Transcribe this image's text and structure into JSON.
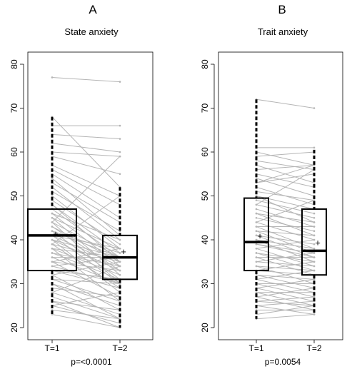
{
  "chart_data": [
    {
      "type": "boxplot-paired",
      "panel_letter": "A",
      "title": "State anxiety",
      "categories": [
        "T=1",
        "T=2"
      ],
      "ylim": [
        20,
        80
      ],
      "yticks": [
        "20",
        "30",
        "40",
        "50",
        "60",
        "70",
        "80"
      ],
      "p_value": "p=<0.0001",
      "mean_marker": "+",
      "boxes": [
        {
          "category": "T=1",
          "min": 23,
          "q1": 33,
          "median": 41,
          "q3": 47,
          "max": 68,
          "mean": 41.3
        },
        {
          "category": "T=2",
          "min": 20,
          "q1": 31,
          "median": 36,
          "q3": 41,
          "max": 52,
          "mean": 37.2
        }
      ],
      "pairs": [
        [
          77,
          76
        ],
        [
          68,
          52
        ],
        [
          66,
          66
        ],
        [
          64,
          63
        ],
        [
          62,
          60
        ],
        [
          60,
          59
        ],
        [
          59,
          55
        ],
        [
          57,
          50
        ],
        [
          56,
          48
        ],
        [
          55,
          45
        ],
        [
          54,
          41
        ],
        [
          53,
          44
        ],
        [
          52,
          40
        ],
        [
          51,
          42
        ],
        [
          50,
          38
        ],
        [
          49,
          39
        ],
        [
          48,
          37
        ],
        [
          48,
          35
        ],
        [
          47,
          36
        ],
        [
          46,
          34
        ],
        [
          46,
          40
        ],
        [
          45,
          32
        ],
        [
          45,
          38
        ],
        [
          44,
          30
        ],
        [
          44,
          36
        ],
        [
          43,
          33
        ],
        [
          43,
          35
        ],
        [
          42,
          36
        ],
        [
          42,
          37
        ],
        [
          42,
          31
        ],
        [
          41,
          34
        ],
        [
          41,
          30
        ],
        [
          41,
          38
        ],
        [
          40,
          36
        ],
        [
          40,
          28
        ],
        [
          40,
          33
        ],
        [
          39,
          35
        ],
        [
          39,
          29
        ],
        [
          38,
          32
        ],
        [
          38,
          36
        ],
        [
          38,
          26
        ],
        [
          37,
          31
        ],
        [
          37,
          34
        ],
        [
          36,
          30
        ],
        [
          36,
          36
        ],
        [
          35,
          27
        ],
        [
          35,
          33
        ],
        [
          34,
          30
        ],
        [
          34,
          36
        ],
        [
          33,
          29
        ],
        [
          33,
          31
        ],
        [
          32,
          35
        ],
        [
          32,
          24
        ],
        [
          31,
          26
        ],
        [
          31,
          30
        ],
        [
          30,
          25
        ],
        [
          30,
          22
        ],
        [
          29,
          27
        ],
        [
          28,
          23
        ],
        [
          28,
          34
        ],
        [
          27,
          22
        ],
        [
          26,
          24
        ],
        [
          26,
          20
        ],
        [
          25,
          28
        ],
        [
          25,
          21
        ],
        [
          24,
          22
        ],
        [
          23,
          20
        ],
        [
          35,
          38
        ],
        [
          39,
          50
        ],
        [
          44,
          59
        ]
      ]
    },
    {
      "type": "boxplot-paired",
      "panel_letter": "B",
      "title": "Trait anxiety",
      "categories": [
        "T=1",
        "T=2"
      ],
      "ylim": [
        20,
        80
      ],
      "yticks": [
        "20",
        "30",
        "40",
        "50",
        "60",
        "70",
        "80"
      ],
      "p_value": "p=0.0054",
      "mean_marker": "+",
      "boxes": [
        {
          "category": "T=1",
          "min": 22,
          "q1": 33,
          "median": 39.5,
          "q3": 49.5,
          "max": 72,
          "mean": 40.8
        },
        {
          "category": "T=2",
          "min": 23,
          "q1": 32,
          "median": 37.5,
          "q3": 47,
          "max": 60.5,
          "mean": 39.3
        }
      ],
      "pairs": [
        [
          72,
          70
        ],
        [
          61,
          61
        ],
        [
          60,
          57
        ],
        [
          59,
          60
        ],
        [
          58,
          56
        ],
        [
          57,
          53
        ],
        [
          56,
          57
        ],
        [
          55,
          52
        ],
        [
          54,
          50
        ],
        [
          53,
          55
        ],
        [
          52,
          48
        ],
        [
          51,
          49
        ],
        [
          50,
          47
        ],
        [
          50,
          44
        ],
        [
          49,
          46
        ],
        [
          48,
          45
        ],
        [
          47,
          43
        ],
        [
          46,
          44
        ],
        [
          46,
          41
        ],
        [
          45,
          42
        ],
        [
          44,
          40
        ],
        [
          43,
          43
        ],
        [
          43,
          38
        ],
        [
          42,
          41
        ],
        [
          42,
          37
        ],
        [
          41,
          39
        ],
        [
          41,
          36
        ],
        [
          40,
          38
        ],
        [
          40,
          35
        ],
        [
          39,
          37
        ],
        [
          39,
          36
        ],
        [
          38,
          34
        ],
        [
          38,
          40
        ],
        [
          37,
          35
        ],
        [
          37,
          33
        ],
        [
          36,
          36
        ],
        [
          36,
          32
        ],
        [
          35,
          34
        ],
        [
          35,
          37
        ],
        [
          34,
          33
        ],
        [
          34,
          30
        ],
        [
          33,
          32
        ],
        [
          33,
          35
        ],
        [
          32,
          31
        ],
        [
          32,
          29
        ],
        [
          31,
          33
        ],
        [
          31,
          28
        ],
        [
          30,
          30
        ],
        [
          30,
          27
        ],
        [
          29,
          31
        ],
        [
          29,
          26
        ],
        [
          28,
          28
        ],
        [
          28,
          25
        ],
        [
          27,
          29
        ],
        [
          27,
          24
        ],
        [
          26,
          27
        ],
        [
          26,
          25
        ],
        [
          25,
          26
        ],
        [
          25,
          23
        ],
        [
          24,
          24
        ],
        [
          23,
          25
        ],
        [
          22,
          23
        ],
        [
          44,
          49
        ],
        [
          48,
          56
        ],
        [
          53,
          57
        ]
      ]
    }
  ]
}
